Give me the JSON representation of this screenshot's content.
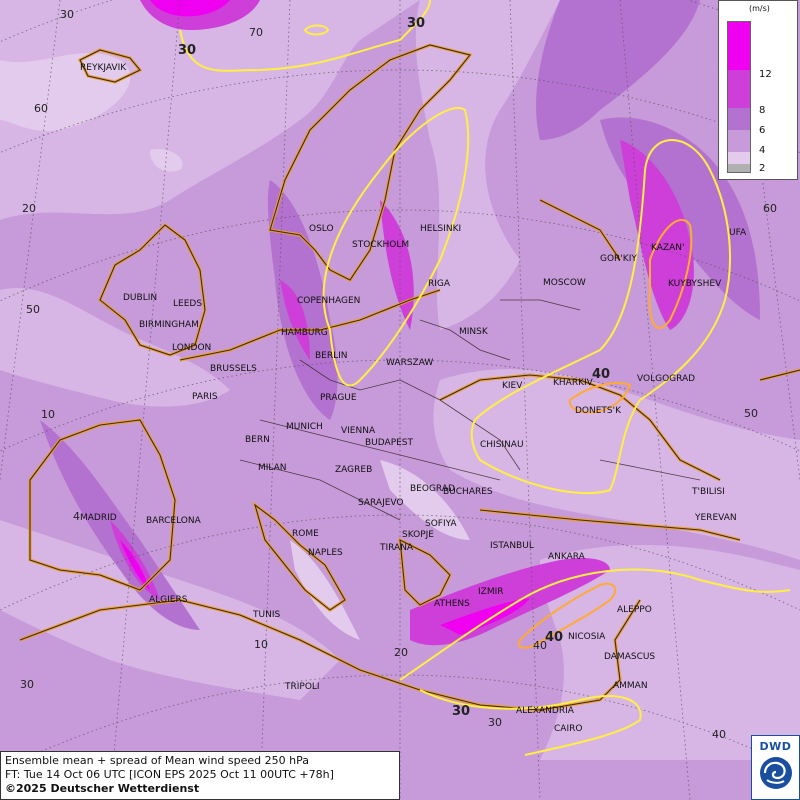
{
  "map": {
    "field": "Ensemble mean + spread of Mean wind speed 250 hPa",
    "colors": {
      "base": "#c79ad9",
      "lowest": "#e2cbec",
      "low": "#d7b6e6",
      "mid": "#b372d0",
      "high": "#cd3fd8",
      "highest": "#f000f0",
      "contour_30": "#ffee44",
      "contour_40": "#ffaa33",
      "coast": "#3a2a2a",
      "coast_halo": "#f0a020"
    },
    "contour_labels": [
      "30",
      "30",
      "40",
      "40",
      "30"
    ],
    "grid_labels": {
      "lat": [
        "70",
        "60",
        "60",
        "50",
        "50",
        "40",
        "30"
      ],
      "lon": [
        "30",
        "20",
        "10",
        "4",
        "10",
        "20",
        "30",
        "40"
      ]
    },
    "cities": [
      "REYKJAVIK",
      "OSLO",
      "HELSINKI",
      "STOCKHOLM",
      "RIGA",
      "GOR'KIY",
      "KAZAN'",
      "UFA",
      "KUYBYSHEV",
      "MOSCOW",
      "DUBLIN",
      "LEEDS",
      "BIRMINGHAM",
      "LONDON",
      "COPENHAGEN",
      "HAMBURG",
      "BERLIN",
      "MINSK",
      "WARSZAW",
      "BRUSSELS",
      "PARIS",
      "PRAGUE",
      "KIEV",
      "KHARKIV",
      "VOLGOGRAD",
      "DONETS'K",
      "MUNICH",
      "VIENNA",
      "BERN",
      "BUDAPEST",
      "CHISINAU",
      "MILAN",
      "ZAGREB",
      "BEOGRAD",
      "BUCHARES",
      "T'BILISI",
      "YEREVAN",
      "SARAJEVO",
      "MADRID",
      "BARCELONA",
      "ROME",
      "SOFIYA",
      "SKOPJE",
      "TIRANA",
      "NAPLES",
      "ISTANBUL",
      "ANKARA",
      "IZMIR",
      "ALGIERS",
      "ATHENS",
      "TUNIS",
      "ALEPPO",
      "NICOSIA",
      "DAMASCUS",
      "TRIPOLI",
      "AMMAN",
      "ALEXANDRIA",
      "CAIRO"
    ]
  },
  "legend": {
    "unit": "(m/s)",
    "ticks": [
      "12",
      "8",
      "6",
      "4",
      "2"
    ],
    "bands": [
      "#f000f0",
      "#cd3fd8",
      "#b372d0",
      "#c79ad9",
      "#e2cbec",
      "#b0b0b0"
    ]
  },
  "footer": {
    "line1": "Ensemble mean + spread of Mean wind speed 250 hPa",
    "line2": "FT: Tue 14 Oct 06 UTC [ICON EPS 2025 Oct 11 00UTC +78h]",
    "line3": "©2025 Deutscher Wetterdienst"
  },
  "logo": {
    "text": "DWD"
  }
}
